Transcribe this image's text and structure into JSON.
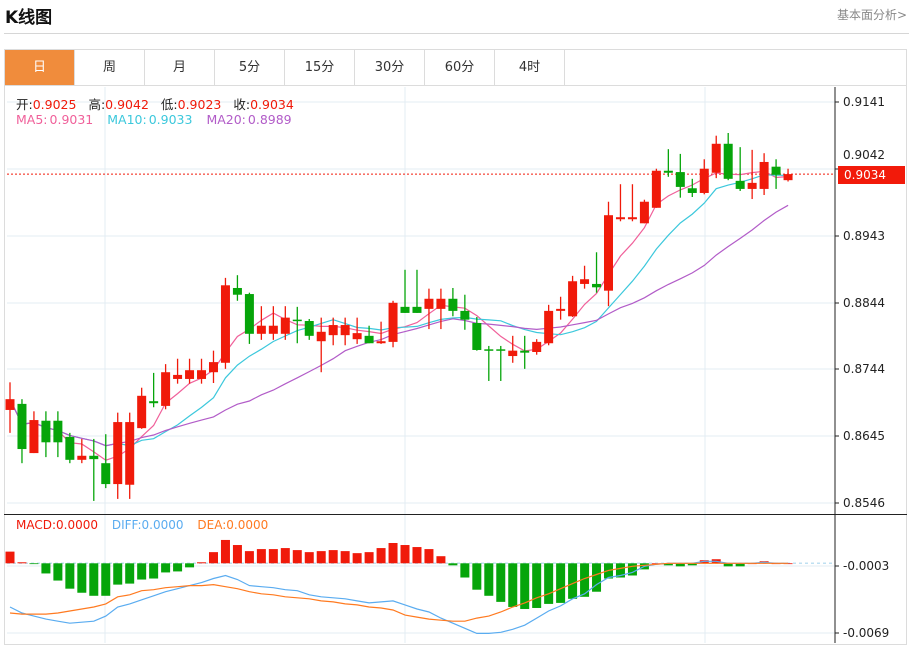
{
  "header": {
    "title": "K线图",
    "fundamental_link": "基本面分析>"
  },
  "tabs": [
    {
      "label": "日",
      "active": true
    },
    {
      "label": "周"
    },
    {
      "label": "月"
    },
    {
      "label": "5分"
    },
    {
      "label": "15分"
    },
    {
      "label": "30分"
    },
    {
      "label": "60分"
    },
    {
      "label": "4时"
    }
  ],
  "ohlc_info": {
    "open_label": "开:",
    "open": "0.9025",
    "high_label": "高:",
    "high": "0.9042",
    "low_label": "低:",
    "low": "0.9023",
    "close_label": "收:",
    "close": "0.9034"
  },
  "ma_info": {
    "ma5_label": "MA5:",
    "ma5": "0.9031",
    "ma10_label": "MA10:",
    "ma10": "0.9033",
    "ma20_label": "MA20:",
    "ma20": "0.8989"
  },
  "macd_info": {
    "macd_label": "MACD:",
    "macd": "0.0000",
    "diff_label": "DIFF:",
    "diff": "0.0000",
    "dea_label": "DEA:",
    "dea": "0.0000"
  },
  "current_price": "0.9034",
  "colors": {
    "up": "#f01a0a",
    "down": "#06a50a",
    "ma5": "#f0609a",
    "ma10": "#3cc8dc",
    "ma20": "#b25cc8",
    "diff": "#5aacf0",
    "dea": "#ff7a20",
    "active_tab": "#f08c3c"
  },
  "chart_data": [
    {
      "type": "candlestick",
      "title": "K线图",
      "yticks": [
        "0.9141",
        "0.9042",
        "0.8943",
        "0.8844",
        "0.8744",
        "0.8645",
        "0.8546"
      ],
      "ylim": [
        0.853,
        0.9163
      ],
      "grid": true,
      "ma_periods": [
        5,
        10,
        20
      ],
      "candles": [
        [
          0.8684,
          0.8725,
          0.865,
          0.87
        ],
        [
          0.8693,
          0.87,
          0.8605,
          0.8626
        ],
        [
          0.862,
          0.8682,
          0.862,
          0.8669
        ],
        [
          0.8668,
          0.8682,
          0.8614,
          0.8636
        ],
        [
          0.8668,
          0.8682,
          0.8614,
          0.8636
        ],
        [
          0.8644,
          0.865,
          0.8605,
          0.861
        ],
        [
          0.861,
          0.8641,
          0.8605,
          0.8616
        ],
        [
          0.8616,
          0.8641,
          0.8549,
          0.8611
        ],
        [
          0.8605,
          0.8648,
          0.8568,
          0.8574
        ],
        [
          0.8574,
          0.868,
          0.8552,
          0.8666
        ],
        [
          0.8573,
          0.868,
          0.8552,
          0.8666
        ],
        [
          0.8657,
          0.8717,
          0.8656,
          0.8705
        ],
        [
          0.8697,
          0.8739,
          0.8688,
          0.8694
        ],
        [
          0.869,
          0.8752,
          0.8685,
          0.874
        ],
        [
          0.873,
          0.876,
          0.8723,
          0.8736
        ],
        [
          0.873,
          0.876,
          0.8723,
          0.8743
        ],
        [
          0.873,
          0.876,
          0.8723,
          0.8743
        ],
        [
          0.874,
          0.8772,
          0.8724,
          0.8755
        ],
        [
          0.8754,
          0.888,
          0.8745,
          0.8869
        ],
        [
          0.8865,
          0.8884,
          0.8846,
          0.8855
        ],
        [
          0.8856,
          0.8858,
          0.8782,
          0.8797
        ],
        [
          0.8797,
          0.8838,
          0.8788,
          0.8809
        ],
        [
          0.8797,
          0.8838,
          0.8788,
          0.8809
        ],
        [
          0.8797,
          0.8838,
          0.8788,
          0.8821
        ],
        [
          0.8818,
          0.8837,
          0.8783,
          0.8816
        ],
        [
          0.8816,
          0.8819,
          0.8788,
          0.8794
        ],
        [
          0.8786,
          0.8821,
          0.874,
          0.88
        ],
        [
          0.8795,
          0.8821,
          0.878,
          0.881
        ],
        [
          0.8795,
          0.8821,
          0.878,
          0.881
        ],
        [
          0.8789,
          0.8821,
          0.8782,
          0.8798
        ],
        [
          0.8794,
          0.8809,
          0.8783,
          0.8783
        ],
        [
          0.8783,
          0.8815,
          0.8782,
          0.8786
        ],
        [
          0.8785,
          0.8846,
          0.8777,
          0.8843
        ],
        [
          0.8837,
          0.8892,
          0.8828,
          0.8828
        ],
        [
          0.8837,
          0.8892,
          0.8828,
          0.8828
        ],
        [
          0.8834,
          0.8864,
          0.8804,
          0.8849
        ],
        [
          0.8834,
          0.8864,
          0.8804,
          0.8849
        ],
        [
          0.8849,
          0.8865,
          0.8823,
          0.8831
        ],
        [
          0.8831,
          0.8855,
          0.8803,
          0.8818
        ],
        [
          0.8813,
          0.8822,
          0.8772,
          0.8773
        ],
        [
          0.8774,
          0.8779,
          0.8727,
          0.8772
        ],
        [
          0.8774,
          0.8779,
          0.8727,
          0.8772
        ],
        [
          0.8764,
          0.8794,
          0.8754,
          0.8772
        ],
        [
          0.8772,
          0.8794,
          0.8745,
          0.8769
        ],
        [
          0.877,
          0.8789,
          0.8766,
          0.8785
        ],
        [
          0.8783,
          0.884,
          0.878,
          0.8831
        ],
        [
          0.8831,
          0.8852,
          0.8818,
          0.8834
        ],
        [
          0.8823,
          0.8883,
          0.8822,
          0.8875
        ],
        [
          0.8871,
          0.8898,
          0.8864,
          0.8878
        ],
        [
          0.8871,
          0.8918,
          0.8858,
          0.8866
        ],
        [
          0.8861,
          0.8993,
          0.8838,
          0.8973
        ],
        [
          0.8967,
          0.9019,
          0.8964,
          0.897
        ],
        [
          0.8967,
          0.9019,
          0.8964,
          0.897
        ],
        [
          0.8961,
          0.8996,
          0.8961,
          0.8993
        ],
        [
          0.8984,
          0.9042,
          0.8984,
          0.9039
        ],
        [
          0.9039,
          0.9071,
          0.903,
          0.9036
        ],
        [
          0.9037,
          0.9064,
          0.8999,
          0.9015
        ],
        [
          0.9013,
          0.9027,
          0.9,
          0.9006
        ],
        [
          0.9006,
          0.9056,
          0.9004,
          0.9042
        ],
        [
          0.9036,
          0.9091,
          0.9028,
          0.9079
        ],
        [
          0.9079,
          0.9095,
          0.9025,
          0.9027
        ],
        [
          0.9024,
          0.9074,
          0.9009,
          0.9012
        ],
        [
          0.9012,
          0.907,
          0.8997,
          0.9021
        ],
        [
          0.9012,
          0.9065,
          0.9003,
          0.9052
        ],
        [
          0.9045,
          0.9056,
          0.9012,
          0.9033
        ],
        [
          0.9025,
          0.9042,
          0.9023,
          0.9034
        ]
      ]
    },
    {
      "type": "bar+line",
      "title": "MACD",
      "yticks": [
        "-0.0003",
        "-0.0069"
      ],
      "macd": [
        0.00115,
        0.0001,
        -3e-05,
        -0.001,
        -0.0017,
        -0.0025,
        -0.0029,
        -0.0032,
        -0.0032,
        -0.0021,
        -0.002,
        -0.0016,
        -0.0015,
        -0.0009,
        -0.0008,
        -0.0004,
        0.0001,
        0.0011,
        0.0023,
        0.0018,
        0.0012,
        0.0014,
        0.0014,
        0.0015,
        0.0013,
        0.0011,
        0.0012,
        0.0013,
        0.0012,
        0.001,
        0.0011,
        0.0015,
        0.002,
        0.0018,
        0.0016,
        0.0014,
        0.0007,
        -0.0002,
        -0.0014,
        -0.0026,
        -0.0032,
        -0.0038,
        -0.0043,
        -0.0045,
        -0.0044,
        -0.004,
        -0.0039,
        -0.0035,
        -0.0033,
        -0.0028,
        -0.0015,
        -0.0014,
        -0.0012,
        -0.0006,
        0,
        -0.0002,
        -0.0003,
        -0.0002,
        0.0003,
        0.0004,
        -0.0003,
        -0.0003,
        0,
        0.0002,
        0,
        0
      ],
      "diff": [
        -0.0043,
        -0.0049,
        -0.0052,
        -0.0055,
        -0.0057,
        -0.0059,
        -0.0058,
        -0.0057,
        -0.0052,
        -0.0043,
        -0.004,
        -0.0036,
        -0.0032,
        -0.0028,
        -0.0025,
        -0.0022,
        -0.0019,
        -0.0015,
        -0.0012,
        -0.0016,
        -0.0022,
        -0.0023,
        -0.0024,
        -0.0026,
        -0.0027,
        -0.0031,
        -0.0033,
        -0.0034,
        -0.0035,
        -0.0037,
        -0.0039,
        -0.0038,
        -0.0037,
        -0.0041,
        -0.0045,
        -0.0048,
        -0.0054,
        -0.0059,
        -0.0064,
        -0.0069,
        -0.0069,
        -0.0068,
        -0.0065,
        -0.0061,
        -0.0054,
        -0.0047,
        -0.0042,
        -0.0035,
        -0.003,
        -0.0021,
        -0.0014,
        -0.0012,
        -0.0009,
        -0.0003,
        -0.0001,
        0,
        0,
        0,
        0.0002,
        0.0002,
        0,
        0,
        0,
        0.0001,
        0,
        0
      ],
      "dea": [
        -0.0049,
        -0.005,
        -0.005,
        -0.005,
        -0.0049,
        -0.0047,
        -0.0045,
        -0.0043,
        -0.004,
        -0.0033,
        -0.0031,
        -0.0027,
        -0.0026,
        -0.0024,
        -0.0023,
        -0.0022,
        -0.0022,
        -0.0021,
        -0.0023,
        -0.0025,
        -0.0028,
        -0.003,
        -0.0031,
        -0.0033,
        -0.0034,
        -0.0035,
        -0.0037,
        -0.0038,
        -0.004,
        -0.0041,
        -0.0043,
        -0.0044,
        -0.0046,
        -0.0051,
        -0.0053,
        -0.0055,
        -0.0056,
        -0.0057,
        -0.0057,
        -0.0054,
        -0.0052,
        -0.0048,
        -0.0043,
        -0.0039,
        -0.0034,
        -0.003,
        -0.0025,
        -0.002,
        -0.0015,
        -0.0011,
        -0.0007,
        -0.0005,
        -0.0003,
        -0.0002,
        -0.0001,
        0,
        0,
        0,
        0,
        0,
        0,
        0,
        0,
        0,
        0,
        0
      ]
    }
  ]
}
